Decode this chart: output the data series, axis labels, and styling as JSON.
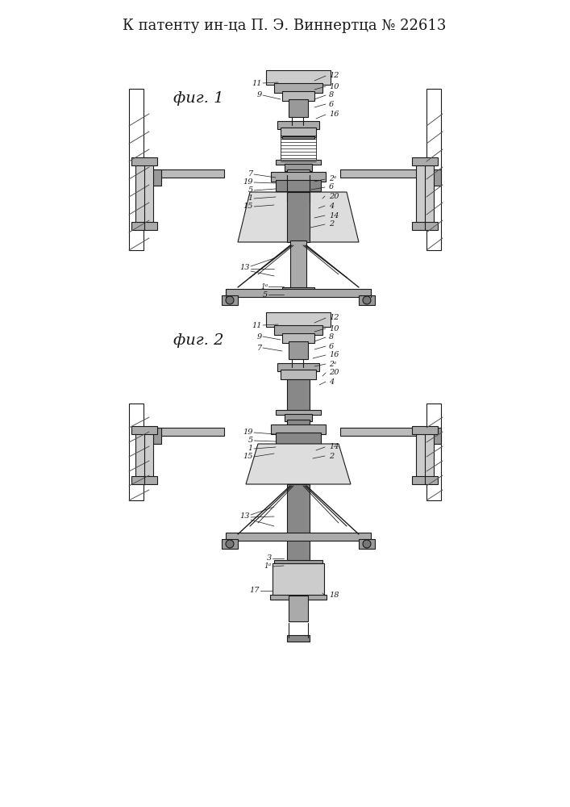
{
  "title": "К патенту ин-ца П. Э. Виннертца № 22613",
  "title_fontsize": 13,
  "fig1_label": "фиг. 1",
  "fig2_label": "фиг. 2",
  "bg_color": "#ffffff",
  "line_color": "#1a1a1a"
}
